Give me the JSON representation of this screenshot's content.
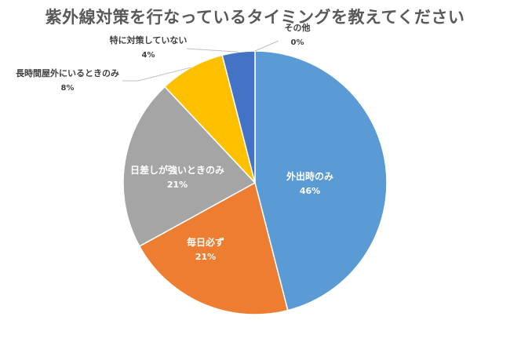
{
  "chart_data": {
    "type": "pie",
    "title": "紫外線対策を行なっているタイミングを教えてください",
    "start_angle_deg": 0,
    "direction": "clockwise",
    "slices": [
      {
        "label": "外出時のみ",
        "value": 46,
        "value_label": "46%",
        "color": "#5B9BD5",
        "label_position": "inside"
      },
      {
        "label": "毎日必ず",
        "value": 21,
        "value_label": "21%",
        "color": "#ED7D31",
        "label_position": "inside"
      },
      {
        "label": "日差しが強いときのみ",
        "value": 21,
        "value_label": "21%",
        "color": "#A5A5A5",
        "label_position": "inside"
      },
      {
        "label": "長時間屋外にいるときのみ",
        "value": 8,
        "value_label": "8%",
        "color": "#FFC000",
        "label_position": "outside"
      },
      {
        "label": "特に対策していない",
        "value": 4,
        "value_label": "4%",
        "color": "#4472C4",
        "label_position": "outside"
      },
      {
        "label": "その他",
        "value": 0,
        "value_label": "0%",
        "color": "#70AD47",
        "label_position": "outside"
      }
    ],
    "legend": "none"
  }
}
